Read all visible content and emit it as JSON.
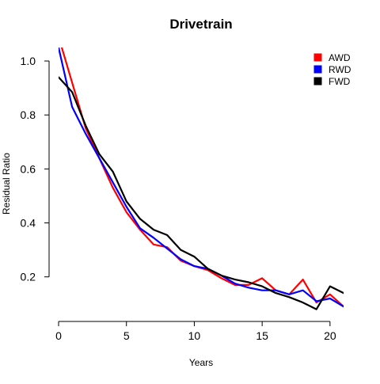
{
  "chart_data": {
    "type": "line",
    "title": "Drivetrain",
    "xlabel": "Years",
    "ylabel": "Residual Ratio",
    "xlim": [
      0,
      21
    ],
    "ylim": [
      0.07,
      1.05
    ],
    "xticks": [
      0,
      5,
      10,
      15,
      20
    ],
    "yticks": [
      0.2,
      0.4,
      0.6,
      0.8,
      1.0
    ],
    "xtick_labels": [
      "0",
      "5",
      "10",
      "15",
      "20"
    ],
    "ytick_labels": [
      "0.2",
      "0.4",
      "0.6",
      "0.8",
      "1.0"
    ],
    "grid": false,
    "legend_position": "top-right",
    "x": [
      0,
      1,
      2,
      3,
      4,
      5,
      6,
      7,
      8,
      9,
      10,
      11,
      12,
      13,
      14,
      15,
      16,
      17,
      18,
      19,
      20,
      21
    ],
    "series": [
      {
        "name": "AWD",
        "color": "#ff0000",
        "values": [
          1.09,
          0.92,
          0.75,
          0.64,
          0.53,
          0.44,
          0.375,
          0.32,
          0.31,
          0.26,
          0.24,
          0.225,
          0.195,
          0.17,
          0.17,
          0.195,
          0.15,
          0.135,
          0.19,
          0.105,
          0.135,
          0.09
        ]
      },
      {
        "name": "RWD",
        "color": "#0000ff",
        "values": [
          1.05,
          0.83,
          0.73,
          0.64,
          0.55,
          0.46,
          0.38,
          0.345,
          0.305,
          0.265,
          0.24,
          0.23,
          0.205,
          0.175,
          0.16,
          0.15,
          0.15,
          0.135,
          0.15,
          0.11,
          0.12,
          0.09
        ]
      },
      {
        "name": "FWD",
        "color": "#000000",
        "values": [
          0.94,
          0.885,
          0.76,
          0.655,
          0.59,
          0.48,
          0.415,
          0.375,
          0.355,
          0.3,
          0.275,
          0.23,
          0.205,
          0.19,
          0.18,
          0.165,
          0.14,
          0.125,
          0.105,
          0.08,
          0.165,
          0.14
        ]
      }
    ]
  }
}
